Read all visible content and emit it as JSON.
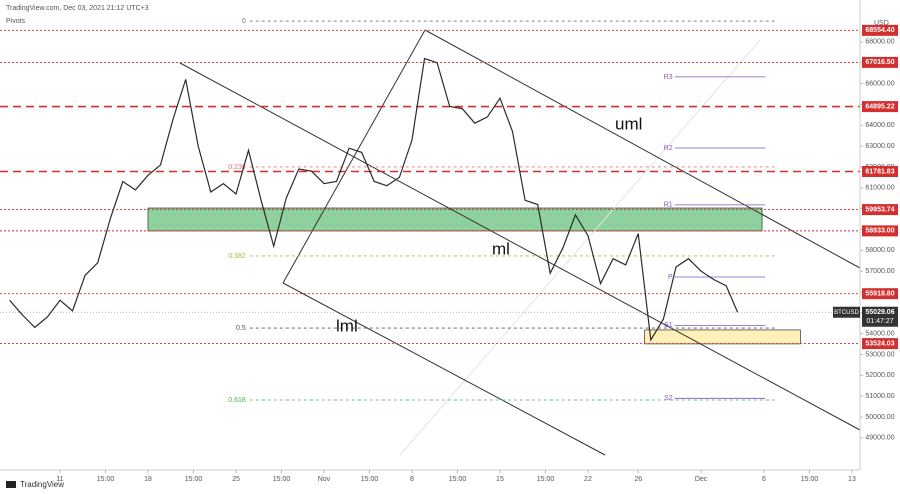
{
  "header": {
    "title": "TradingView.com, Dec 03, 2021 21:12 UTC+3",
    "indicator": "Pivots",
    "currency": "USD",
    "brand": "TradingView"
  },
  "chart_data": {
    "type": "line",
    "symbol": "BTCUSD",
    "countdown": "01:47:27",
    "last_price": 55029.06,
    "color": "#2b2b2b",
    "x": [
      -4,
      -3,
      -2,
      -1,
      0,
      1,
      2,
      3,
      4,
      5,
      6,
      7,
      8,
      9,
      10,
      11,
      12,
      13,
      14,
      15,
      16,
      17,
      18,
      19,
      20,
      21,
      22,
      23,
      24,
      25,
      26,
      27,
      28,
      29,
      30,
      31,
      32,
      33,
      34,
      35,
      36,
      37,
      38,
      39,
      40,
      41,
      42,
      43,
      44,
      45,
      46,
      47,
      48,
      49,
      50,
      51,
      52,
      53,
      53.9
    ],
    "values": [
      55600,
      54900,
      54300,
      54800,
      55600,
      55100,
      56800,
      57400,
      59500,
      61300,
      60900,
      61600,
      62100,
      64300,
      66200,
      63000,
      60800,
      61200,
      60700,
      62800,
      60400,
      58200,
      60500,
      61900,
      61800,
      61200,
      61300,
      62900,
      62700,
      61300,
      61100,
      61500,
      63300,
      67200,
      67000,
      64900,
      64800,
      64100,
      64400,
      65300,
      63700,
      60400,
      60200,
      56900,
      58100,
      59700,
      58700,
      56400,
      57600,
      57300,
      58800,
      53700,
      54700,
      57200,
      57600,
      57000,
      56600,
      56300,
      55029.06
    ],
    "xlim": [
      -4.77,
      63.64
    ],
    "xticks": [
      {
        "value": 0,
        "label": "11"
      },
      {
        "value": 3.625,
        "label": "15:00"
      },
      {
        "value": 7,
        "label": "18"
      },
      {
        "value": 10.625,
        "label": "15:00"
      },
      {
        "value": 14,
        "label": "25"
      },
      {
        "value": 17.625,
        "label": "15:00"
      },
      {
        "value": 21,
        "label": "Nov"
      },
      {
        "value": 24.625,
        "label": "15:00"
      },
      {
        "value": 28,
        "label": "8"
      },
      {
        "value": 31.625,
        "label": "15:00"
      },
      {
        "value": 35,
        "label": "15"
      },
      {
        "value": 38.625,
        "label": "15:00"
      },
      {
        "value": 42,
        "label": "22"
      },
      {
        "value": 46,
        "label": "26"
      },
      {
        "value": 51,
        "label": "Dec"
      },
      {
        "value": 56,
        "label": "6"
      },
      {
        "value": 59.625,
        "label": "15:00"
      },
      {
        "value": 63,
        "label": "13"
      }
    ],
    "ylim": [
      47460,
      70010
    ],
    "yticks": [
      {
        "value": 49000,
        "label": "49000.00"
      },
      {
        "value": 50000,
        "label": "50000.00"
      },
      {
        "value": 51000,
        "label": "51000.00"
      },
      {
        "value": 52000,
        "label": "52000.00"
      },
      {
        "value": 53000,
        "label": "53000.00"
      },
      {
        "value": 54000,
        "label": "54000.00"
      },
      {
        "value": 55000,
        "label": "55000.00"
      },
      {
        "value": 56000,
        "label": "56000.00"
      },
      {
        "value": 57000,
        "label": "57000.00"
      },
      {
        "value": 58000,
        "label": "58000.00"
      },
      {
        "value": 59000,
        "label": "59000.00"
      },
      {
        "value": 60000,
        "label": "60000.00"
      },
      {
        "value": 61000,
        "label": "61000.00"
      },
      {
        "value": 62000,
        "label": "62000.00"
      },
      {
        "value": 63000,
        "label": "63000.00"
      },
      {
        "value": 64000,
        "label": "64000.00"
      },
      {
        "value": 65000,
        "label": "65000.00"
      },
      {
        "value": 66000,
        "label": "66000.00"
      },
      {
        "value": 67000,
        "label": "67000.00"
      },
      {
        "value": 68000,
        "label": "68000.00"
      }
    ],
    "level_color": "#d32f2f",
    "levels": [
      {
        "value": 68554.4,
        "label": "68554.40",
        "style": "dotted"
      },
      {
        "value": 67016.5,
        "label": "67016.50",
        "style": "dotted"
      },
      {
        "value": 64895.22,
        "label": "64895.22",
        "style": "dashed"
      },
      {
        "value": 61781.83,
        "label": "61781.83",
        "style": "dashed"
      },
      {
        "value": 59953.74,
        "label": "59953.74",
        "style": "dotted"
      },
      {
        "value": 58933,
        "label": "58933.00",
        "style": "dotted"
      },
      {
        "value": 55918.8,
        "label": "55918.80",
        "style": "dotted"
      },
      {
        "value": 53524.03,
        "label": "53524.03",
        "style": "dotted"
      }
    ],
    "fib_xrange": [
      15.1,
      56.9
    ],
    "fib": [
      {
        "value": 69000,
        "label": "0",
        "color": "#787878"
      },
      {
        "value": 62000,
        "label": "0.236",
        "color": "#e57373"
      },
      {
        "value": 57730,
        "label": "0.382",
        "color": "#b5b53a"
      },
      {
        "value": 54270,
        "label": "0.5",
        "color": "#555555"
      },
      {
        "value": 50820,
        "label": "0.618",
        "color": "#4caf50"
      }
    ],
    "pivot_color": "#7e57c2",
    "pivot_xrange": [
      48.9,
      56.1
    ],
    "pivots": [
      {
        "value": 66320,
        "label": "R3"
      },
      {
        "value": 62910,
        "label": "R2"
      },
      {
        "value": 60180,
        "label": "R1"
      },
      {
        "value": 56720,
        "label": "P"
      },
      {
        "value": 54400,
        "label": "S1"
      },
      {
        "value": 50900,
        "label": "S2"
      }
    ],
    "zones": [
      {
        "x": [
          7.0,
          55.85
        ],
        "range": [
          58930,
          60030
        ],
        "color": "#8fd19e"
      },
      {
        "x": [
          46.5,
          58.9
        ],
        "range": [
          53510,
          54180
        ],
        "color": "#fff0b8"
      }
    ],
    "annotations": [
      "uml",
      "ml",
      "lml"
    ]
  }
}
